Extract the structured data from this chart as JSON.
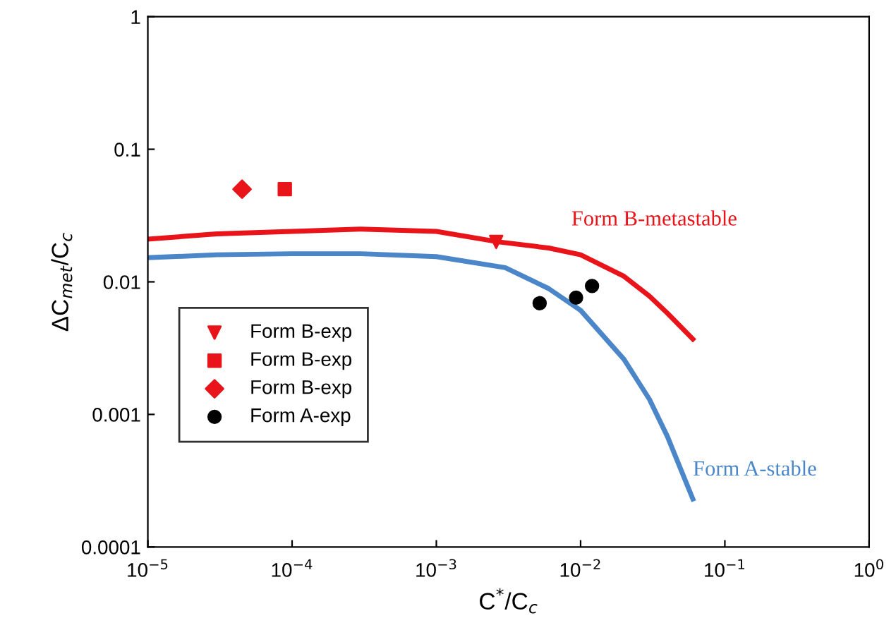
{
  "chart_data": {
    "type": "line",
    "xlabel": "C$^{*}$/C$_{c}$",
    "ylabel": "ΔC$_{met}$/C$_{c}$",
    "log": "xy",
    "xlim": [
      1e-05,
      1
    ],
    "ylim": [
      0.0001,
      1
    ],
    "xticks": [
      {
        "value": 1e-05,
        "label": "10$^{−5}$"
      },
      {
        "value": 0.0001,
        "label": "10$^{−4}$"
      },
      {
        "value": 0.001,
        "label": "10$^{−3}$"
      },
      {
        "value": 0.01,
        "label": "10$^{−2}$"
      },
      {
        "value": 0.1,
        "label": "10$^{−1}$"
      },
      {
        "value": 1,
        "label": "10$^{0}$"
      }
    ],
    "yticks": [
      {
        "value": 0.0001,
        "label": "0.0001"
      },
      {
        "value": 0.001,
        "label": "0.001"
      },
      {
        "value": 0.01,
        "label": "0.01"
      },
      {
        "value": 0.1,
        "label": "0.1"
      },
      {
        "value": 1,
        "label": "1"
      }
    ],
    "grid": false,
    "legend": "bottom left",
    "series": [
      {
        "name": "Form B-metastable",
        "color": "#e8141a",
        "marker": "none",
        "x": [
          1e-05,
          3e-05,
          0.0001,
          0.0003,
          0.001,
          0.0027,
          0.006,
          0.01,
          0.02,
          0.03,
          0.04,
          0.06
        ],
        "values": [
          0.021,
          0.023,
          0.024,
          0.025,
          0.024,
          0.02,
          0.018,
          0.016,
          0.011,
          0.0078,
          0.0058,
          0.0037
        ]
      },
      {
        "name": "Form A-stable",
        "color": "#4a86c8",
        "marker": "none",
        "x": [
          1e-05,
          3e-05,
          0.0001,
          0.0003,
          0.001,
          0.003,
          0.006,
          0.01,
          0.02,
          0.03,
          0.04,
          0.06
        ],
        "values": [
          0.0152,
          0.016,
          0.0163,
          0.0163,
          0.0155,
          0.0128,
          0.0089,
          0.0061,
          0.0026,
          0.0013,
          0.00068,
          0.00023
        ]
      },
      {
        "name": "Form B-exp",
        "type": "scatter",
        "color": "#e8141a",
        "marker": "triangle",
        "x": [
          0.0026
        ],
        "values": [
          0.02
        ]
      },
      {
        "name": "Form B-exp",
        "type": "scatter",
        "color": "#e8141a",
        "marker": "square",
        "x": [
          8.9e-05
        ],
        "values": [
          0.05
        ]
      },
      {
        "name": "Form B-exp",
        "type": "scatter",
        "color": "#e8141a",
        "marker": "diamond",
        "x": [
          4.5e-05
        ],
        "values": [
          0.05
        ]
      },
      {
        "name": "Form A-exp",
        "type": "scatter",
        "color": "#000000",
        "marker": "circle",
        "x": [
          0.0052,
          0.0093,
          0.012
        ],
        "values": [
          0.0069,
          0.0076,
          0.0093
        ]
      }
    ]
  }
}
